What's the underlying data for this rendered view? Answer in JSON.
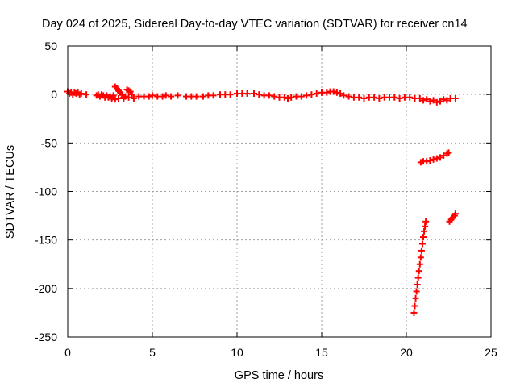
{
  "chart_data": {
    "type": "scatter",
    "title": "Day 024 of 2025, Sidereal Day-to-day VTEC variation (SDTVAR) for receiver cn14",
    "xlabel": "GPS time / hours",
    "ylabel": "SDTVAR / TECUs",
    "xlim": [
      0,
      25
    ],
    "ylim": [
      -250,
      50
    ],
    "xticks": [
      "0",
      "5",
      "10",
      "15",
      "20",
      "25"
    ],
    "yticks": [
      "50",
      "0",
      "-50",
      "-100",
      "-150",
      "-200",
      "-250"
    ],
    "grid": true,
    "marker": "+",
    "color": "#ff0000",
    "series": [
      {
        "points": [
          [
            0.0,
            3
          ],
          [
            0.1,
            1
          ],
          [
            0.2,
            2
          ],
          [
            0.3,
            0
          ],
          [
            0.4,
            2
          ],
          [
            0.5,
            1
          ],
          [
            0.6,
            2
          ],
          [
            0.7,
            0
          ],
          [
            0.8,
            1
          ],
          [
            1.1,
            0
          ],
          [
            1.7,
            -1
          ],
          [
            1.8,
            0
          ],
          [
            1.9,
            -2
          ],
          [
            2.0,
            0
          ],
          [
            2.1,
            -1
          ],
          [
            2.2,
            -3
          ],
          [
            2.3,
            -1
          ],
          [
            2.4,
            -3
          ],
          [
            2.5,
            -2
          ],
          [
            2.6,
            -4
          ],
          [
            2.7,
            -1
          ],
          [
            2.8,
            8
          ],
          [
            2.9,
            6
          ],
          [
            3.0,
            4
          ],
          [
            3.1,
            2
          ],
          [
            3.2,
            0
          ],
          [
            3.3,
            -3
          ],
          [
            3.4,
            -2
          ],
          [
            3.5,
            5
          ],
          [
            3.6,
            4
          ],
          [
            3.7,
            3
          ],
          [
            3.8,
            0
          ],
          [
            3.9,
            -4
          ],
          [
            2.8,
            -5
          ],
          [
            3.0,
            -4
          ],
          [
            3.3,
            -4
          ],
          [
            3.6,
            -3
          ],
          [
            4.2,
            -2
          ],
          [
            4.5,
            -2
          ],
          [
            4.8,
            -2
          ],
          [
            5.0,
            -1
          ],
          [
            5.3,
            -2
          ],
          [
            5.6,
            -2
          ],
          [
            5.8,
            -1
          ],
          [
            6.1,
            -2
          ],
          [
            6.5,
            -1
          ],
          [
            7.0,
            -2
          ],
          [
            7.3,
            -2
          ],
          [
            7.6,
            -2
          ],
          [
            8.0,
            -2
          ],
          [
            8.3,
            -1
          ],
          [
            8.6,
            -1
          ],
          [
            9.0,
            0
          ],
          [
            9.3,
            0
          ],
          [
            9.6,
            0
          ],
          [
            10.0,
            1
          ],
          [
            10.3,
            1
          ],
          [
            10.6,
            1
          ],
          [
            11.0,
            1
          ],
          [
            11.3,
            0
          ],
          [
            11.6,
            -1
          ],
          [
            11.9,
            -1
          ],
          [
            12.2,
            -2
          ],
          [
            12.5,
            -3
          ],
          [
            12.8,
            -3
          ],
          [
            13.0,
            -4
          ],
          [
            13.2,
            -3
          ],
          [
            13.5,
            -2
          ],
          [
            13.8,
            -2
          ],
          [
            14.1,
            -1
          ],
          [
            14.4,
            0
          ],
          [
            14.7,
            1
          ],
          [
            15.0,
            2
          ],
          [
            15.3,
            2
          ],
          [
            15.5,
            3
          ],
          [
            15.7,
            3
          ],
          [
            15.9,
            2
          ],
          [
            16.1,
            1
          ],
          [
            16.3,
            -1
          ],
          [
            16.6,
            -2
          ],
          [
            16.9,
            -3
          ],
          [
            17.2,
            -3
          ],
          [
            17.5,
            -4
          ],
          [
            17.8,
            -3
          ],
          [
            18.1,
            -3
          ],
          [
            18.4,
            -4
          ],
          [
            18.7,
            -3
          ],
          [
            19.0,
            -3
          ],
          [
            19.3,
            -3
          ],
          [
            19.6,
            -4
          ],
          [
            19.9,
            -3
          ],
          [
            20.2,
            -3
          ],
          [
            20.5,
            -4
          ],
          [
            20.8,
            -4
          ],
          [
            21.0,
            -6
          ],
          [
            21.2,
            -5
          ],
          [
            21.4,
            -7
          ],
          [
            21.6,
            -6
          ],
          [
            21.8,
            -8
          ],
          [
            22.0,
            -7
          ],
          [
            22.2,
            -5
          ],
          [
            22.4,
            -6
          ],
          [
            22.6,
            -4
          ],
          [
            22.9,
            -4
          ],
          [
            20.85,
            -70
          ],
          [
            21.0,
            -69
          ],
          [
            21.2,
            -69
          ],
          [
            21.4,
            -68
          ],
          [
            21.6,
            -67
          ],
          [
            21.8,
            -66
          ],
          [
            22.0,
            -65
          ],
          [
            22.2,
            -63
          ],
          [
            22.4,
            -61
          ],
          [
            22.5,
            -60
          ],
          [
            20.45,
            -225
          ],
          [
            20.5,
            -218
          ],
          [
            20.55,
            -210
          ],
          [
            20.6,
            -203
          ],
          [
            20.65,
            -196
          ],
          [
            20.7,
            -189
          ],
          [
            20.75,
            -182
          ],
          [
            20.8,
            -175
          ],
          [
            20.85,
            -168
          ],
          [
            20.9,
            -161
          ],
          [
            20.95,
            -154
          ],
          [
            21.0,
            -147
          ],
          [
            21.05,
            -141
          ],
          [
            21.1,
            -136
          ],
          [
            21.15,
            -131
          ],
          [
            22.55,
            -131
          ],
          [
            22.65,
            -129
          ],
          [
            22.75,
            -127
          ],
          [
            22.85,
            -125
          ],
          [
            22.9,
            -123
          ]
        ]
      }
    ]
  }
}
